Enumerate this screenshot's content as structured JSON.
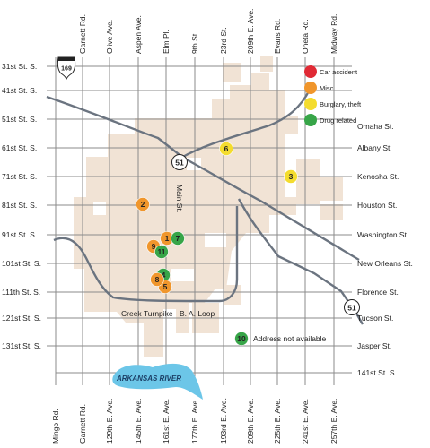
{
  "colors": {
    "area": "#f1e3d5",
    "grid": "#8b8b8b",
    "highway": "#6b7480",
    "water": "#6cc6e8",
    "car_accident": "#e02a35",
    "misc": "#f0962c",
    "burglary_theft": "#f4dc2e",
    "drug_related": "#37a548"
  },
  "streets_ew": [
    "31st St. S.",
    "41st St. S.",
    "51st St. S.",
    "61st St. S.",
    "71st St. S.",
    "81st St. S.",
    "91st St. S.",
    "101st St. S.",
    "111th St. S.",
    "121st St. S.",
    "131st St. S."
  ],
  "streets_ew_right": [
    "Omaha St.",
    "Albany St.",
    "Kenosha St.",
    "Houston St.",
    "Washington St.",
    "New Orleans St.",
    "Florence St.",
    "Tucson St.",
    "Jasper St.",
    "141st St. S."
  ],
  "avenues_top": [
    "Garnett Rd.",
    "Olive Ave.",
    "Aspen Ave.",
    "Elm Pl.",
    "9th St.",
    "23rd St.",
    "209th E. Ave.",
    "Evans Rd.",
    "Oneta Rd.",
    "Midway Rd."
  ],
  "avenues_bottom": [
    "Mingo Rd.",
    "Garnett Rd.",
    "129th E. Ave.",
    "145th E. Ave.",
    "161st E. Ave.",
    "177th E. Ave.",
    "193rd E. Ave.",
    "209th E. Ave.",
    "225th E. Ave.",
    "241st E. Ave.",
    "257th E. Ave."
  ],
  "roads": {
    "main_st": "Main St.",
    "creek_turnpike": "Creek Turnpike",
    "ba_loop": "B. A. Loop",
    "route_51_top": "51",
    "route_51_bottom": "51",
    "us_169": "169"
  },
  "river": "ARKANSAS RIVER",
  "legend": [
    {
      "label": "Car accident",
      "color": "#e02a35"
    },
    {
      "label": "Misc.",
      "color": "#f0962c"
    },
    {
      "label": "Burglary, theft",
      "color": "#f4dc2e"
    },
    {
      "label": "Drug related",
      "color": "#37a548"
    }
  ],
  "incidents": [
    {
      "number": "1",
      "category": "Misc.",
      "color": "#f0962c"
    },
    {
      "number": "2",
      "category": "Misc.",
      "color": "#f0962c"
    },
    {
      "number": "3",
      "category": "Burglary, theft",
      "color": "#f4dc2e"
    },
    {
      "number": "4",
      "category": "Drug related",
      "color": "#37a548"
    },
    {
      "number": "5",
      "category": "Misc.",
      "color": "#f0962c"
    },
    {
      "number": "6",
      "category": "Burglary, theft",
      "color": "#f4dc2e"
    },
    {
      "number": "7",
      "category": "Drug related",
      "color": "#37a548"
    },
    {
      "number": "8",
      "category": "Misc.",
      "color": "#f0962c"
    },
    {
      "number": "9",
      "category": "Misc.",
      "color": "#f0962c"
    },
    {
      "number": "10",
      "category": "Drug related",
      "color": "#37a548"
    },
    {
      "number": "11",
      "category": "Drug related",
      "color": "#37a548"
    }
  ],
  "note": "Address not available"
}
